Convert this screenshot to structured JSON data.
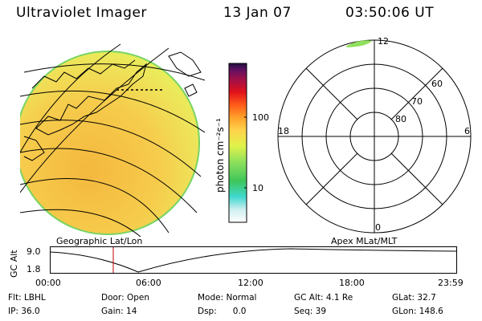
{
  "header": {
    "instrument": "Ultraviolet Imager",
    "date": "13 Jan 07",
    "time": "03:50:06 UT"
  },
  "colorbar": {
    "unit_label": "photon cm⁻²s⁻¹",
    "ticks": [
      "100",
      "10"
    ],
    "colors": [
      "#ffffff",
      "#cfeef0",
      "#40d8d0",
      "#3ec65a",
      "#8fe05c",
      "#e0f24a",
      "#ffd24a",
      "#ffa02a",
      "#ff5a1a",
      "#e0101a",
      "#a0104a",
      "#601060",
      "#201040"
    ]
  },
  "left_panel": {
    "caption": "Geographic Lat/Lon",
    "disk_colors": {
      "main": "#f5c84a",
      "limb": "#e8f050",
      "edge": "#7ad866"
    }
  },
  "right_panel": {
    "caption": "Apex MLat/MLT",
    "mlt_labels": {
      "top": "12",
      "left": "18",
      "right": "6",
      "bottom": "0"
    },
    "lat_labels": [
      "60",
      "70",
      "80"
    ]
  },
  "altitude_plot": {
    "axis_label": "GC Alt",
    "y_ticks": [
      "9.0",
      "1.8"
    ],
    "x_ticks": [
      "00:00",
      "06:00",
      "12:00",
      "18:00",
      "23:59"
    ],
    "marker_color": "#c00000"
  },
  "footer": {
    "row1": [
      "Flt: LBHL",
      "Door: Open",
      "Mode: Normal",
      "GC Alt: 4.1 Re",
      "GLat: 32.7"
    ],
    "row2": [
      "IP: 36.0",
      "Gain: 14",
      "Dsp:      0.0",
      "Seq: 39",
      "GLon: 148.6"
    ]
  }
}
